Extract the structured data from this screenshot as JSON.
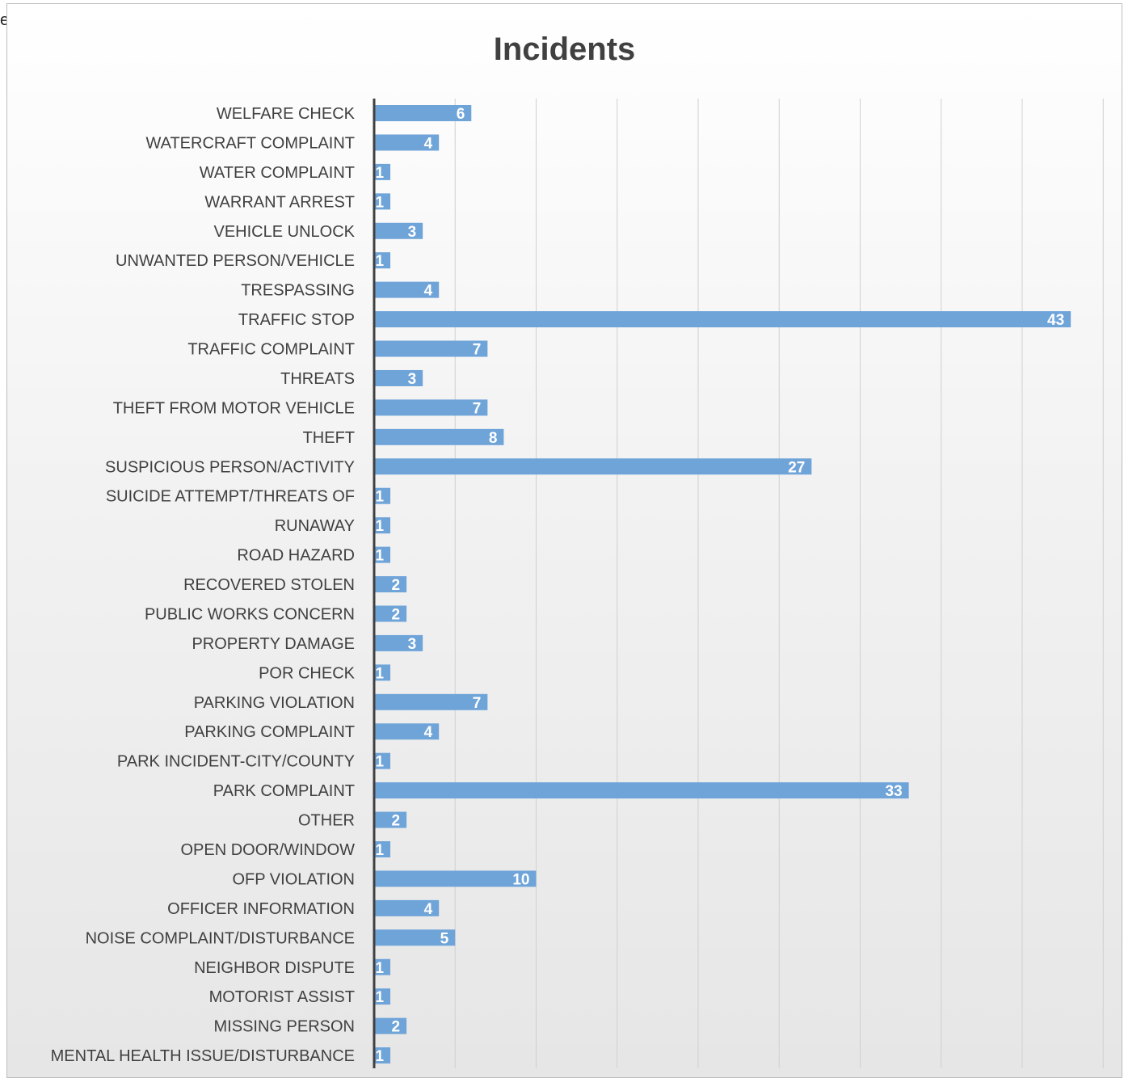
{
  "header_stub": "e",
  "chart_data": {
    "type": "bar",
    "orientation": "horizontal",
    "title": "Incidents",
    "xlabel": "",
    "ylabel": "",
    "xlim": [
      0,
      45
    ],
    "grid": true,
    "bar_color": "#6fa4d9",
    "label_color": "#ffffff",
    "categories": [
      "WELFARE CHECK",
      "WATERCRAFT COMPLAINT",
      "WATER COMPLAINT",
      "WARRANT ARREST",
      "VEHICLE UNLOCK",
      "UNWANTED PERSON/VEHICLE",
      "TRESPASSING",
      "TRAFFIC STOP",
      "TRAFFIC COMPLAINT",
      "THREATS",
      "THEFT FROM MOTOR VEHICLE",
      "THEFT",
      "SUSPICIOUS PERSON/ACTIVITY",
      "SUICIDE ATTEMPT/THREATS OF",
      "RUNAWAY",
      "ROAD HAZARD",
      "RECOVERED STOLEN",
      "PUBLIC WORKS CONCERN",
      "PROPERTY DAMAGE",
      "POR CHECK",
      "PARKING VIOLATION",
      "PARKING COMPLAINT",
      "PARK INCIDENT-CITY/COUNTY",
      "PARK COMPLAINT",
      "OTHER",
      "OPEN DOOR/WINDOW",
      "OFP VIOLATION",
      "OFFICER INFORMATION",
      "NOISE COMPLAINT/DISTURBANCE",
      "NEIGHBOR DISPUTE",
      "MOTORIST ASSIST",
      "MISSING PERSON",
      "MENTAL HEALTH ISSUE/DISTURBANCE"
    ],
    "values": [
      6,
      4,
      1,
      1,
      3,
      1,
      4,
      43,
      7,
      3,
      7,
      8,
      27,
      1,
      1,
      1,
      2,
      2,
      3,
      1,
      7,
      4,
      1,
      33,
      2,
      1,
      10,
      4,
      5,
      1,
      1,
      2,
      1
    ]
  }
}
